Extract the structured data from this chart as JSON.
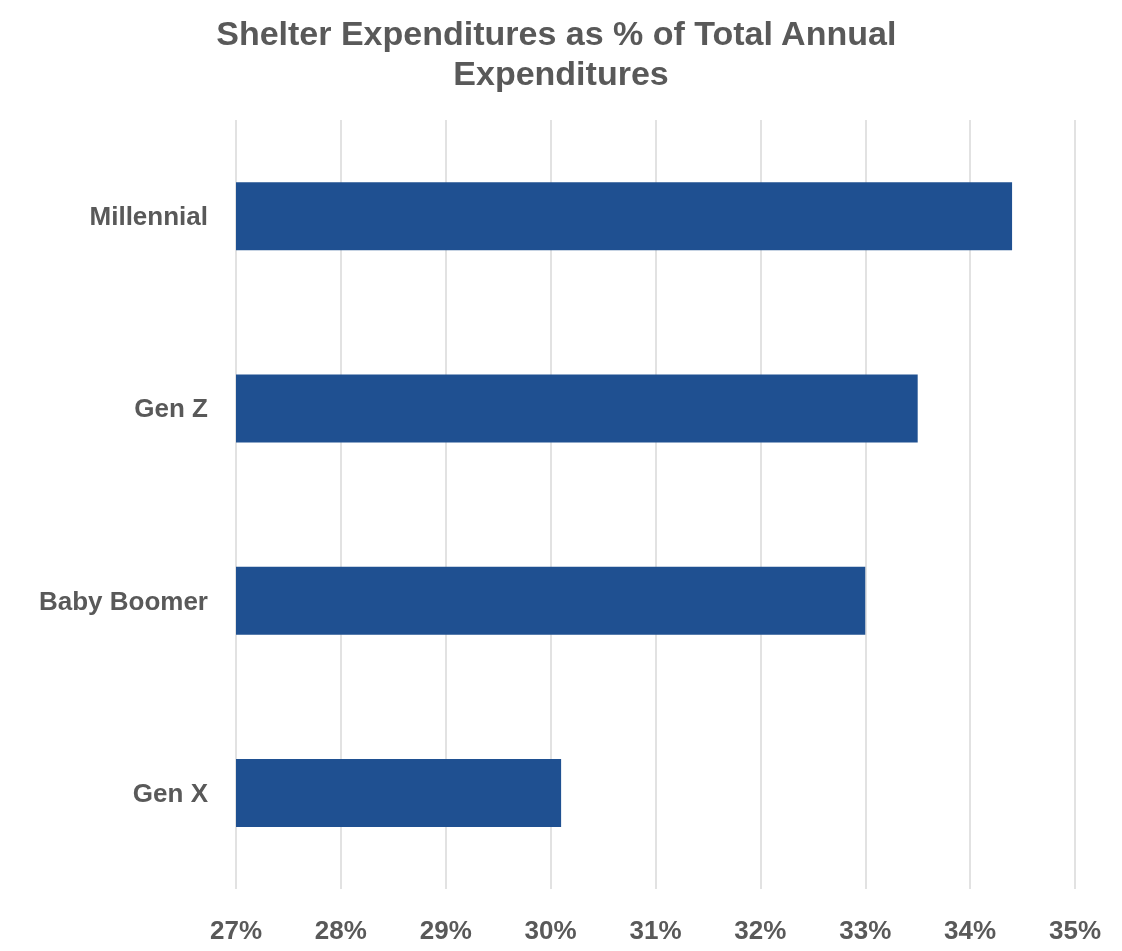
{
  "chart_data": {
    "type": "bar",
    "orientation": "horizontal",
    "title": "Shelter Expenditures as % of Total Annual Expenditures",
    "categories": [
      "Millennial",
      "Gen Z",
      "Baby Boomer",
      "Gen X"
    ],
    "values": [
      34.4,
      33.5,
      33.0,
      30.1
    ],
    "color": "#1f5091",
    "xlim": [
      27,
      35
    ],
    "xticks": [
      {
        "value": 27,
        "label": "27%"
      },
      {
        "value": 28,
        "label": "28%"
      },
      {
        "value": 29,
        "label": "29%"
      },
      {
        "value": 30,
        "label": "30%"
      },
      {
        "value": 31,
        "label": "31%"
      },
      {
        "value": 32,
        "label": "32%"
      },
      {
        "value": 33,
        "label": "33%"
      },
      {
        "value": 34,
        "label": "34%"
      },
      {
        "value": 35,
        "label": "35%"
      }
    ],
    "grid": "x"
  }
}
